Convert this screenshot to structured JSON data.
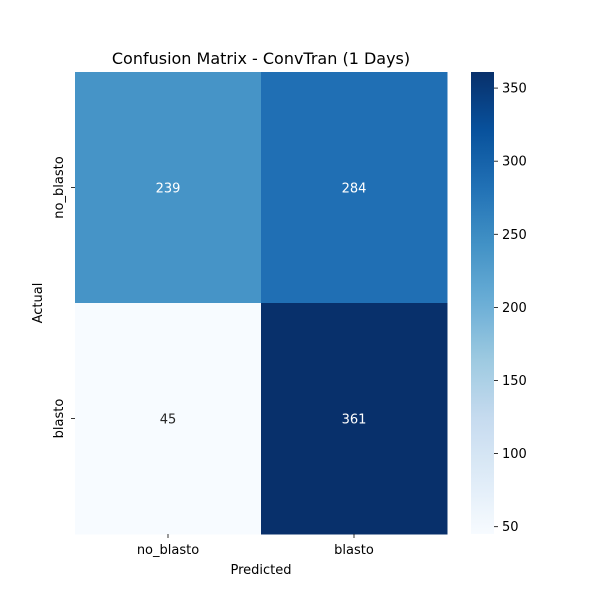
{
  "chart_data": {
    "type": "heatmap",
    "title": "Confusion Matrix - ConvTran (1 Days)",
    "xlabel": "Predicted",
    "ylabel": "Actual",
    "x_categories": [
      "no_blasto",
      "blasto"
    ],
    "y_categories": [
      "no_blasto",
      "blasto"
    ],
    "values": [
      [
        239,
        284
      ],
      [
        45,
        361
      ]
    ],
    "colormap": "Blues",
    "color_range": [
      45,
      361
    ],
    "colorbar_ticks": [
      50,
      100,
      150,
      200,
      250,
      300,
      350
    ],
    "annotation_color_light": "#ffffff",
    "annotation_color_dark": "#262626"
  }
}
